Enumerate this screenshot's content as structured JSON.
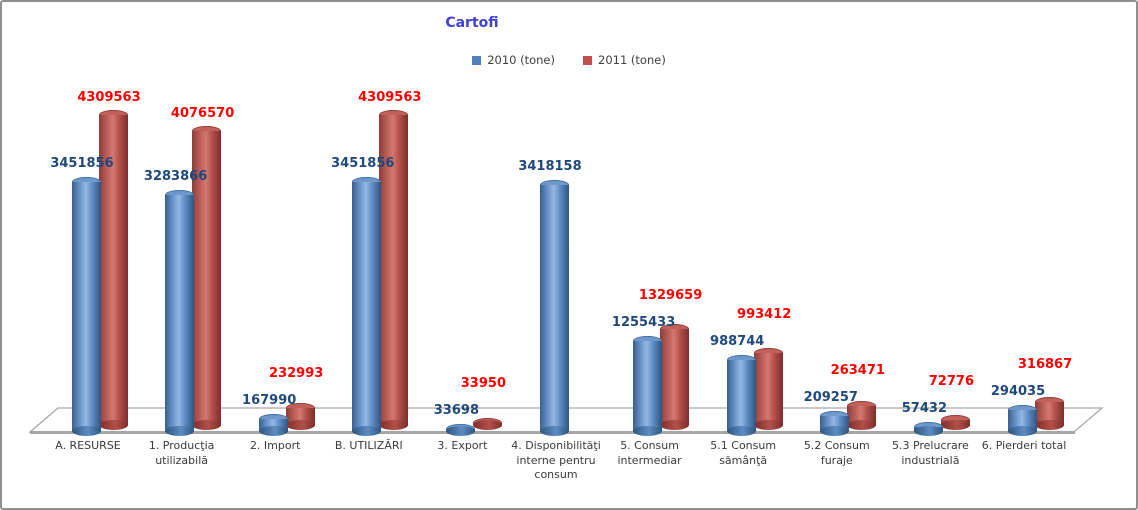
{
  "window": {
    "background": "#ffffff",
    "border_color": "#8f8f8f"
  },
  "chart_data": {
    "type": "bar",
    "style": "3d-cylinder",
    "title": "Cartofi",
    "title_color": "#4040cc",
    "legend_position": "top",
    "grid": false,
    "value_axis_visible": false,
    "ylim": [
      0,
      4500000
    ],
    "categories": [
      "A. RESURSE",
      "1. Producţia utilizabilă",
      "2. Import",
      "B. UTILIZĂRI",
      "3. Export",
      "4. Disponibilităţi interne pentru consum",
      "5. Consum intermediar",
      "5.1 Consum sămânţă",
      "5.2 Consum furaje",
      "5.3 Prelucrare industrială",
      "6. Pierderi total"
    ],
    "series": [
      {
        "name": "2010 (tone)",
        "color": "#4F81BD",
        "label_color": "#1F497D",
        "values": [
          3451856,
          3283866,
          167990,
          3451856,
          33698,
          3418158,
          1255433,
          988744,
          209257,
          57432,
          294035
        ]
      },
      {
        "name": "2011 (tone)",
        "color": "#C0504D",
        "label_color": "#FF0000",
        "values": [
          4309563,
          4076570,
          232993,
          4309563,
          33950,
          null,
          1329659,
          993412,
          263471,
          72776,
          316867
        ]
      }
    ]
  }
}
